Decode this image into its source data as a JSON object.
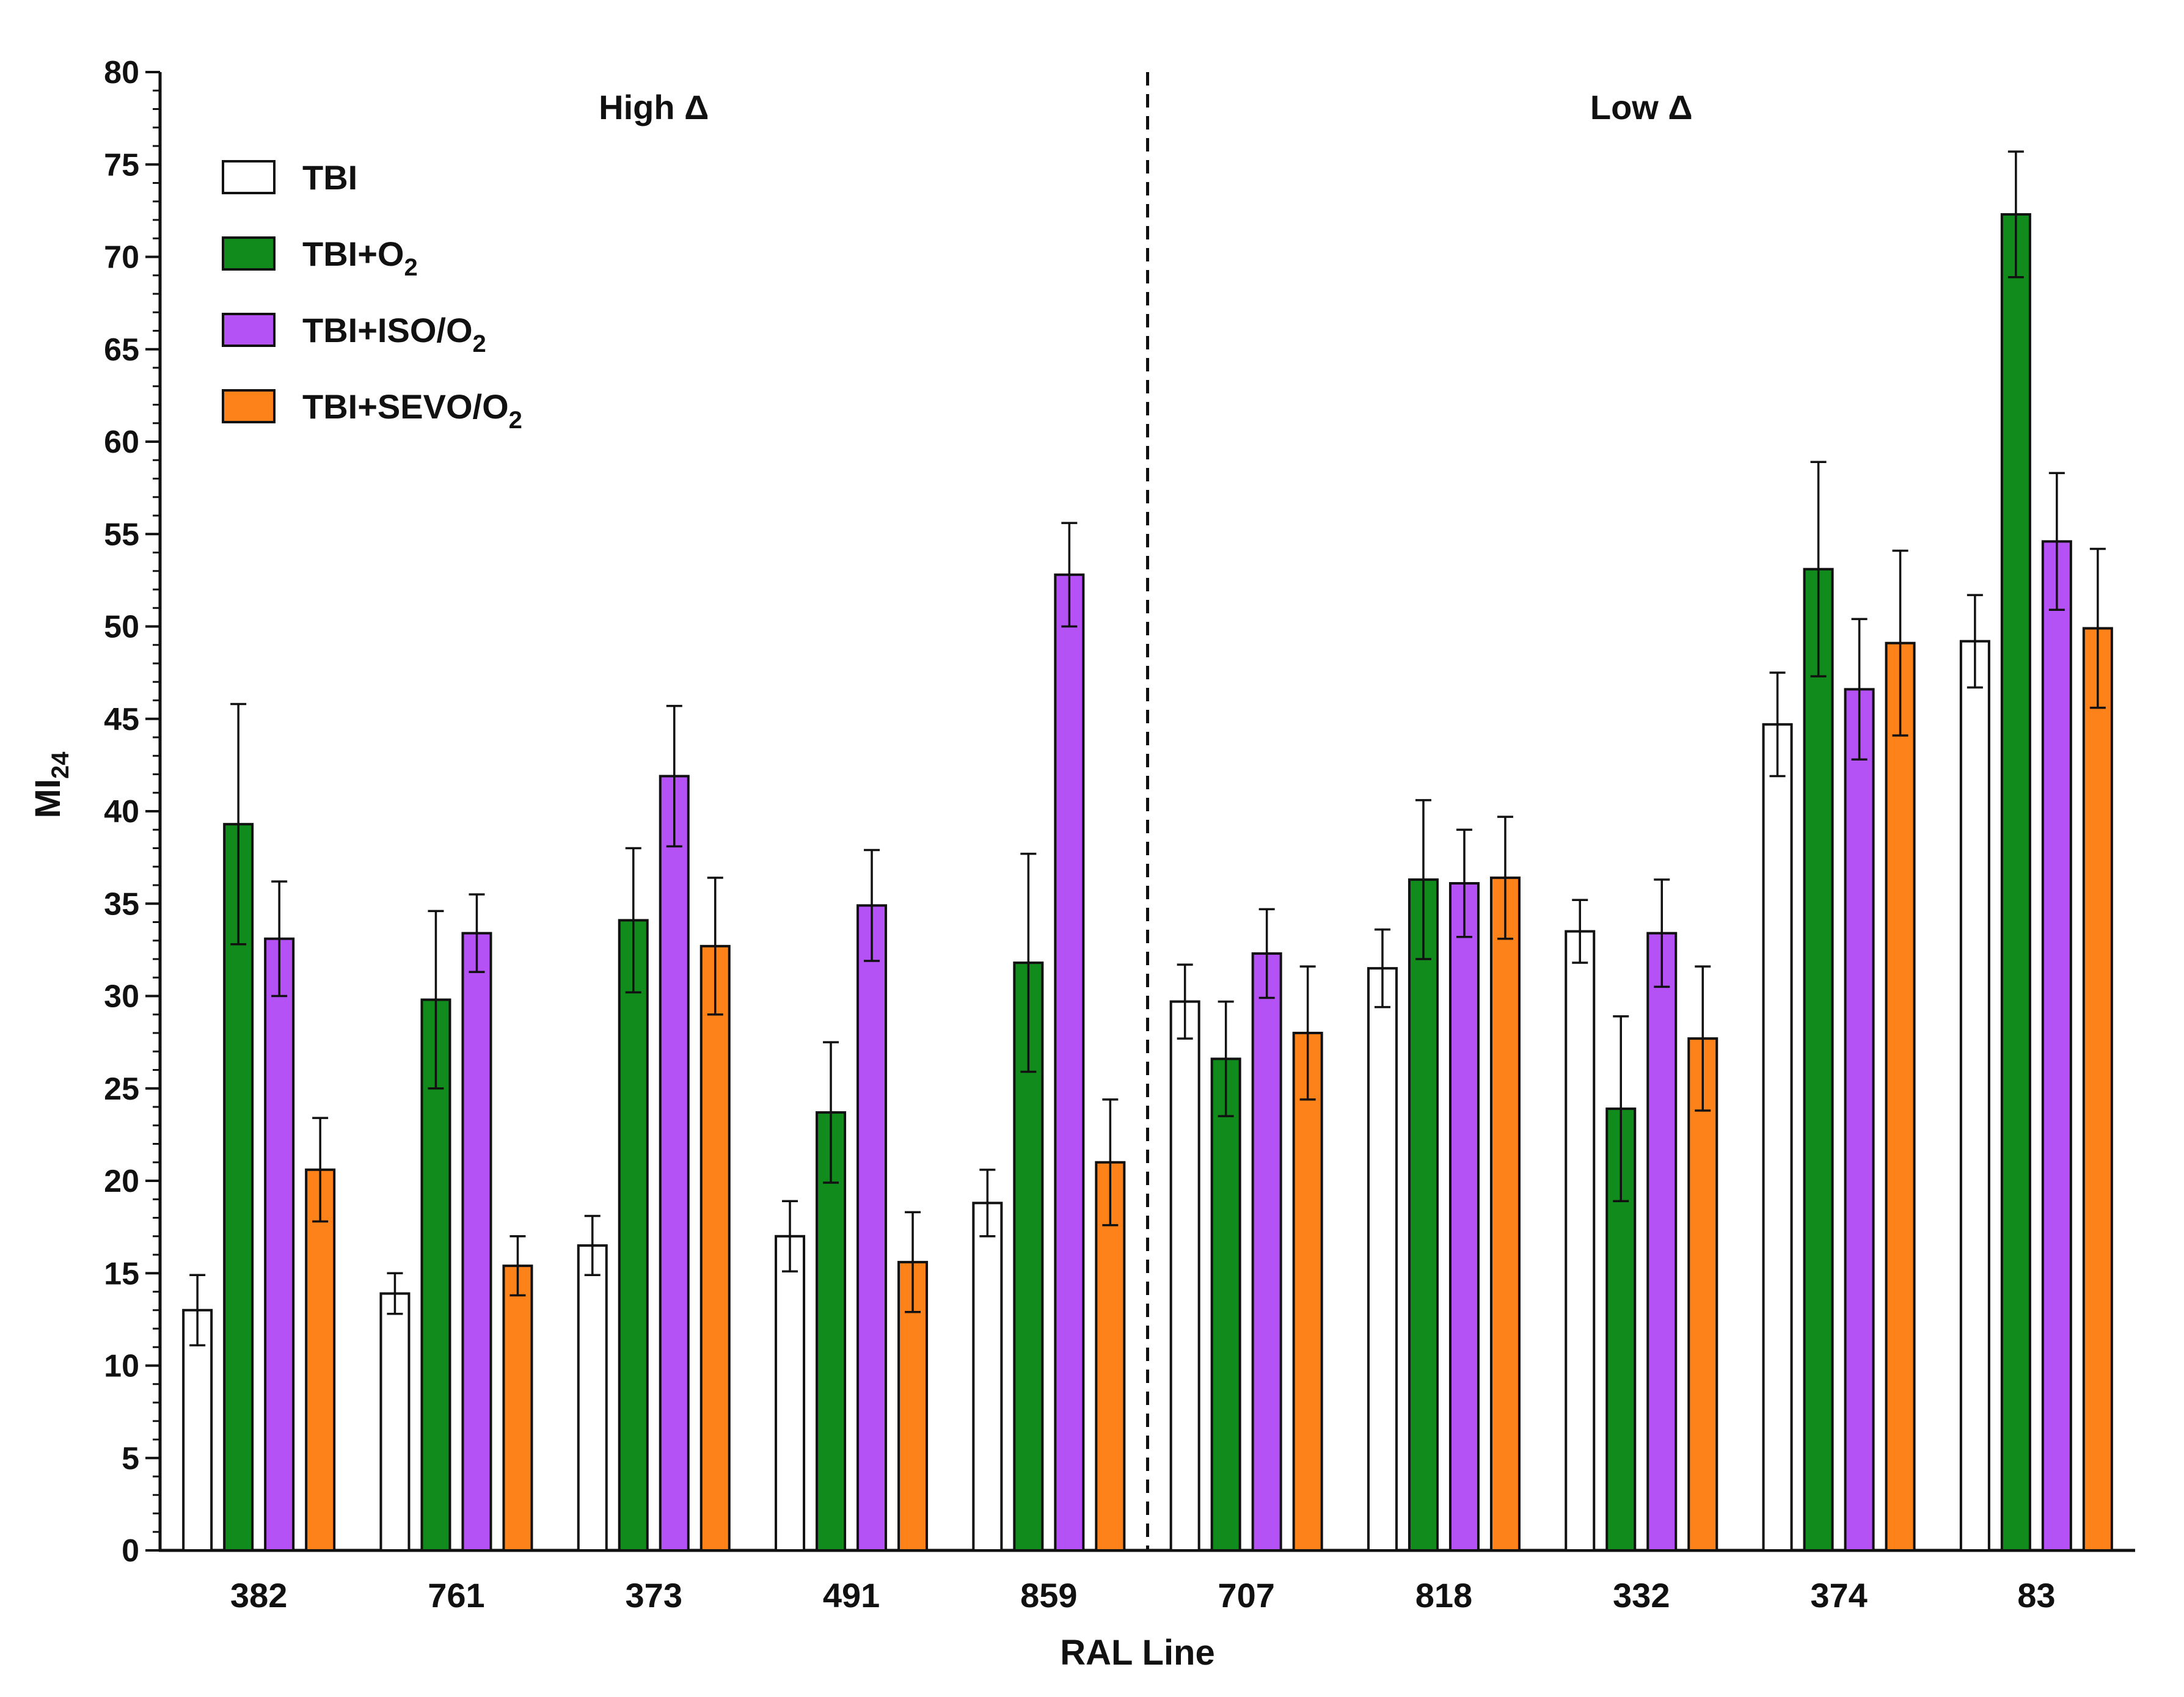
{
  "chart_data": {
    "type": "bar",
    "title": "",
    "xlabel": "RAL Line",
    "ylabel": "MI",
    "ylabel_sub": "24",
    "ylim": [
      0,
      80
    ],
    "ytick_step": 5,
    "yticks": [
      "0",
      "5",
      "10",
      "15",
      "20",
      "25",
      "30",
      "35",
      "40",
      "45",
      "50",
      "55",
      "60",
      "65",
      "70",
      "75",
      "80"
    ],
    "categories": [
      "382",
      "761",
      "373",
      "491",
      "859",
      "707",
      "818",
      "332",
      "374",
      "83"
    ],
    "group_labels": [
      {
        "text": "High Δ",
        "start_index": 0,
        "end_index": 4
      },
      {
        "text": "Low Δ",
        "start_index": 5,
        "end_index": 9
      }
    ],
    "divider_after_index": 4,
    "series": [
      {
        "name": "TBI",
        "name_main": "TBI",
        "name_sub": "",
        "name_after": "",
        "color": "#ffffff",
        "values": [
          13.0,
          13.9,
          16.5,
          17.0,
          18.8,
          29.7,
          31.5,
          33.5,
          44.7,
          49.2
        ],
        "errors": [
          1.9,
          1.1,
          1.6,
          1.9,
          1.8,
          2.0,
          2.1,
          1.7,
          2.8,
          2.5
        ]
      },
      {
        "name": "TBI+O2",
        "name_main": "TBI+O",
        "name_sub": "2",
        "name_after": "",
        "color": "#118b1c",
        "values": [
          39.3,
          29.8,
          34.1,
          23.7,
          31.8,
          26.6,
          36.3,
          23.9,
          53.1,
          72.3
        ],
        "errors": [
          6.5,
          4.8,
          3.9,
          3.8,
          5.9,
          3.1,
          4.3,
          5.0,
          5.8,
          3.4
        ]
      },
      {
        "name": "TBI+ISO/O2",
        "name_main": "TBI+ISO/O",
        "name_sub": "2",
        "name_after": "",
        "color": "#b552f5",
        "values": [
          33.1,
          33.4,
          41.9,
          34.9,
          52.8,
          32.3,
          36.1,
          33.4,
          46.6,
          54.6
        ],
        "errors": [
          3.1,
          2.1,
          3.8,
          3.0,
          2.8,
          2.4,
          2.9,
          2.9,
          3.8,
          3.7
        ]
      },
      {
        "name": "TBI+SEVO/O2",
        "name_main": "TBI+SEVO/O",
        "name_sub": "2",
        "name_after": "",
        "color": "#fd821a",
        "values": [
          20.6,
          15.4,
          32.7,
          15.6,
          21.0,
          28.0,
          36.4,
          27.7,
          49.1,
          49.9
        ],
        "errors": [
          2.8,
          1.6,
          3.7,
          2.7,
          3.4,
          3.6,
          3.3,
          3.9,
          5.0,
          4.3
        ]
      }
    ],
    "legend_position": "top-left",
    "grid": false
  }
}
